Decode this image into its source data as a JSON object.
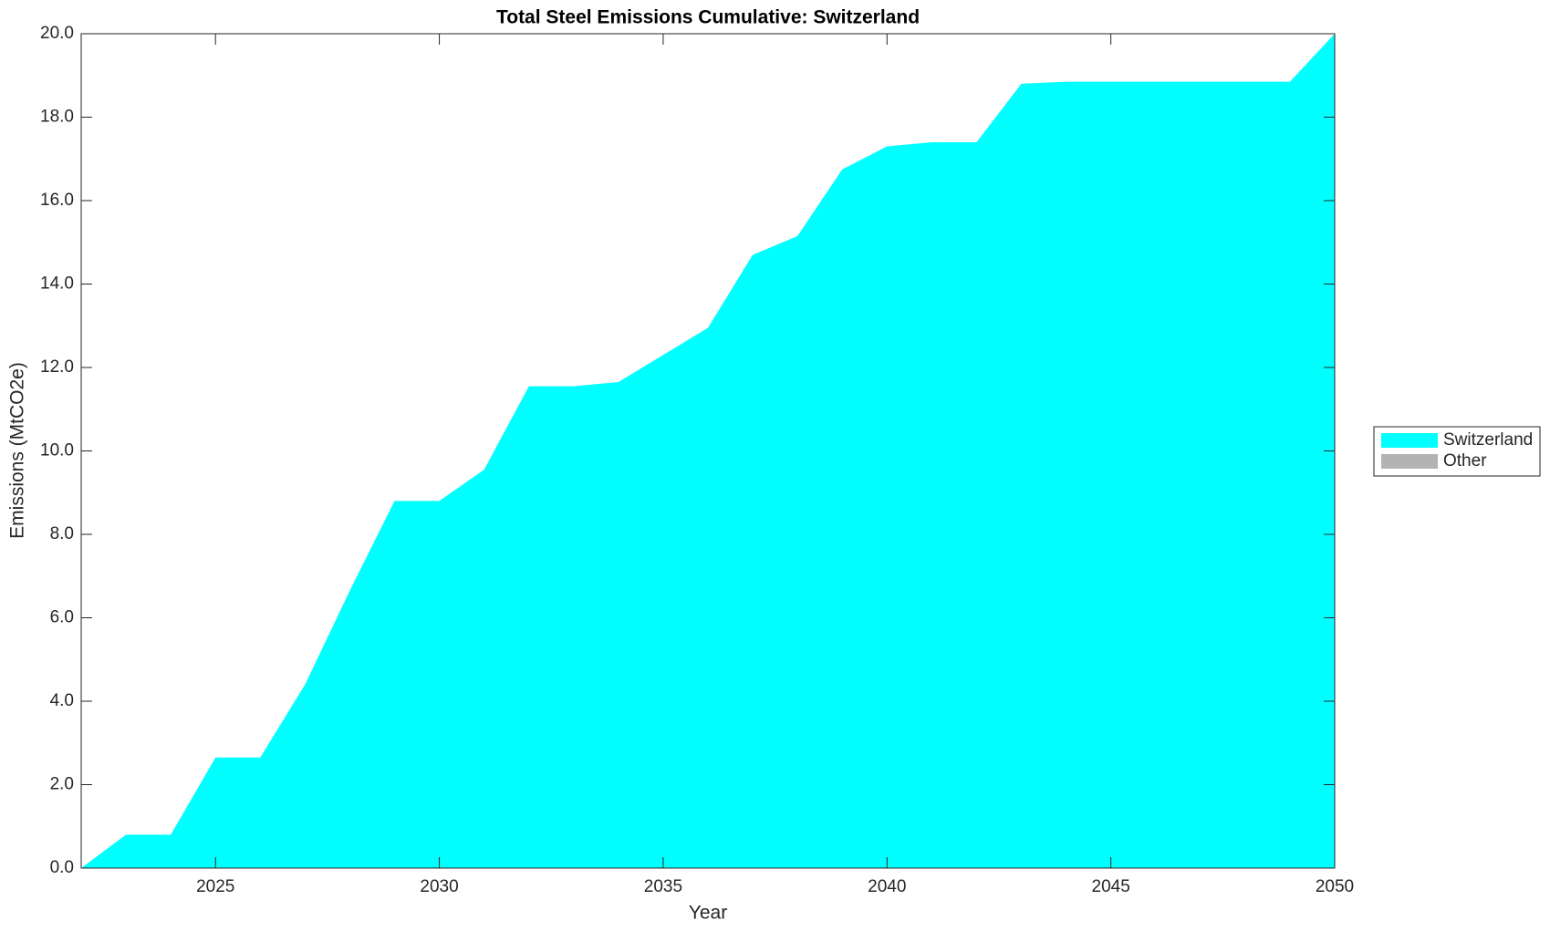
{
  "chart_data": {
    "type": "stacked-area",
    "title": "Total Steel Emissions Cumulative: Switzerland",
    "x_label": "Year",
    "y_label": "Emissions (MtCO2e)",
    "x": [
      2022,
      2023,
      2024,
      2025,
      2026,
      2027,
      2028,
      2029,
      2030,
      2031,
      2032,
      2033,
      2034,
      2035,
      2036,
      2037,
      2038,
      2039,
      2040,
      2041,
      2042,
      2043,
      2044,
      2045,
      2046,
      2047,
      2048,
      2049,
      2050
    ],
    "series": [
      {
        "name": "Switzerland",
        "color": "#00ffff",
        "values": [
          0,
          0.8,
          0.8,
          2.65,
          2.65,
          4.4,
          6.65,
          8.8,
          8.8,
          9.55,
          11.55,
          11.55,
          11.65,
          12.3,
          12.95,
          14.7,
          15.15,
          16.75,
          17.3,
          17.4,
          17.4,
          18.8,
          18.85,
          18.85,
          18.85,
          18.85,
          18.85,
          18.85,
          20.0
        ]
      },
      {
        "name": "Other",
        "color": "#b3b3b3",
        "values": [
          0,
          0,
          0,
          0,
          0,
          0,
          0,
          0,
          0,
          0,
          0,
          0,
          0,
          0,
          0,
          0,
          0,
          0,
          0,
          0,
          0,
          0,
          0,
          0,
          0,
          0,
          0,
          0,
          0
        ]
      }
    ],
    "xlim": [
      2022,
      2050
    ],
    "xticks": [
      2025,
      2030,
      2035,
      2040,
      2045,
      2050
    ],
    "ylim": [
      0,
      20
    ],
    "yticks": [
      {
        "value": 0,
        "label": "0.0"
      },
      {
        "value": 2,
        "label": "2.0"
      },
      {
        "value": 4,
        "label": "4.0"
      },
      {
        "value": 6,
        "label": "6.0"
      },
      {
        "value": 8,
        "label": "8.0"
      },
      {
        "value": 10,
        "label": "10.0"
      },
      {
        "value": 12,
        "label": "12.0"
      },
      {
        "value": 14,
        "label": "14.0"
      },
      {
        "value": 16,
        "label": "16.0"
      },
      {
        "value": 18,
        "label": "18.0"
      },
      {
        "value": 20,
        "label": "20.0"
      }
    ],
    "legend": "right"
  }
}
